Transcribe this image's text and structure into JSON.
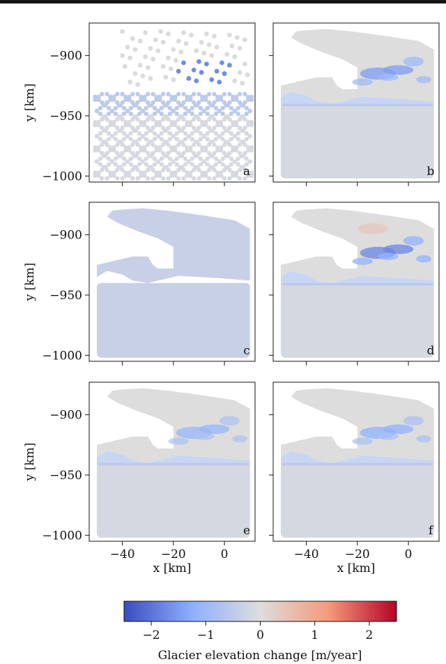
{
  "chart_data": {
    "type": "heatmap",
    "panels": [
      {
        "letter": "a",
        "style": "tracks",
        "hotspot": -1.7
      },
      {
        "letter": "b",
        "style": "smooth",
        "hotspot": -1.5
      },
      {
        "letter": "c",
        "style": "flat",
        "hotspot": -0.35
      },
      {
        "letter": "d",
        "style": "smooth",
        "hotspot": -1.8
      },
      {
        "letter": "e",
        "style": "smooth",
        "hotspot": -1.1
      },
      {
        "letter": "f",
        "style": "smooth",
        "hotspot": -1.2
      }
    ],
    "xlabel": "x [km]",
    "ylabel": "y [km]",
    "xlim": [
      -53,
      12
    ],
    "ylim": [
      -1005,
      -873
    ],
    "xticks": [
      -40,
      -20,
      0
    ],
    "yticks": [
      -900,
      -950,
      -1000
    ],
    "xtick_labels": [
      "−40",
      "−20",
      "0"
    ],
    "ytick_labels": [
      "−900",
      "−950",
      "−1000"
    ],
    "colorbar": {
      "label": "Glacier elevation change [m/year]",
      "min": -2.5,
      "max": 2.5,
      "ticks": [
        -2,
        -1,
        0,
        1,
        2
      ],
      "tick_labels": [
        "−2",
        "−1",
        "0",
        "1",
        "2"
      ],
      "colormap": "coolwarm",
      "color_low": "#3b4cc0",
      "color_mid": "#dddddd",
      "color_high": "#b40426"
    }
  }
}
